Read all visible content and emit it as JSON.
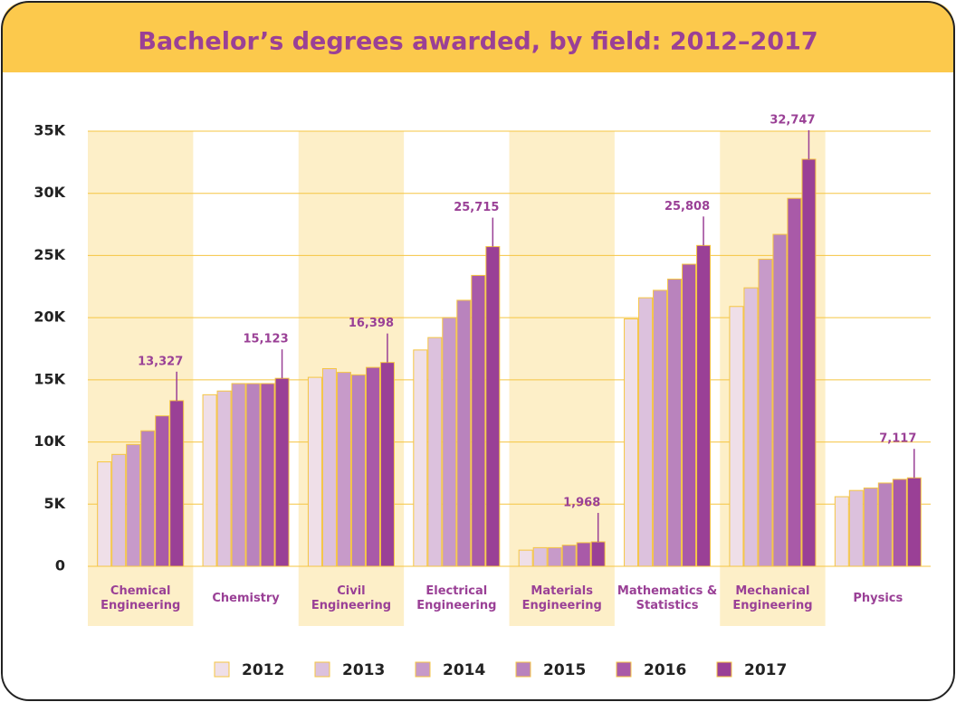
{
  "chart_data": {
    "type": "bar",
    "title": "Bachelor’s degrees awarded, by field: 2012–2017",
    "categories": [
      "Chemical Engineering",
      "Chemistry",
      "Civil Engineering",
      "Electrical Engineering",
      "Materials Engineering",
      "Mathematics & Statistics",
      "Mechanical Engineering",
      "Physics"
    ],
    "series": [
      {
        "name": "2012",
        "color": "#efdfe8",
        "values": [
          8400,
          13800,
          15200,
          17400,
          1300,
          19900,
          20900,
          5600
        ]
      },
      {
        "name": "2013",
        "color": "#dcc1dd",
        "values": [
          9000,
          14100,
          15900,
          18400,
          1500,
          21600,
          22400,
          6100
        ]
      },
      {
        "name": "2014",
        "color": "#c79ac9",
        "values": [
          9800,
          14700,
          15600,
          20000,
          1500,
          22200,
          24700,
          6300
        ]
      },
      {
        "name": "2015",
        "color": "#b983bd",
        "values": [
          10900,
          14700,
          15400,
          21400,
          1700,
          23100,
          26700,
          6700
        ]
      },
      {
        "name": "2016",
        "color": "#a95aa8",
        "values": [
          12100,
          14700,
          16000,
          23400,
          1900,
          24300,
          29600,
          7000
        ]
      },
      {
        "name": "2017",
        "color": "#9a4096",
        "values": [
          13327,
          15123,
          16398,
          25715,
          1968,
          25808,
          32747,
          7117
        ],
        "value_labels": [
          "13,327",
          "15,123",
          "16,398",
          "25,715",
          "1,968",
          "25,808",
          "32,747",
          "7,117"
        ]
      }
    ],
    "ylim": [
      0,
      35000
    ],
    "yticks": [
      0,
      {
        "value": 5000,
        "label": "5K"
      },
      {
        "value": 10000,
        "label": "10K"
      },
      {
        "value": 15000,
        "label": "15K"
      },
      {
        "value": 20000,
        "label": "20K"
      },
      {
        "value": 25000,
        "label": "25K"
      },
      {
        "value": 30000,
        "label": "30K"
      },
      {
        "value": 35000,
        "label": "35K"
      }
    ],
    "grid": true
  }
}
